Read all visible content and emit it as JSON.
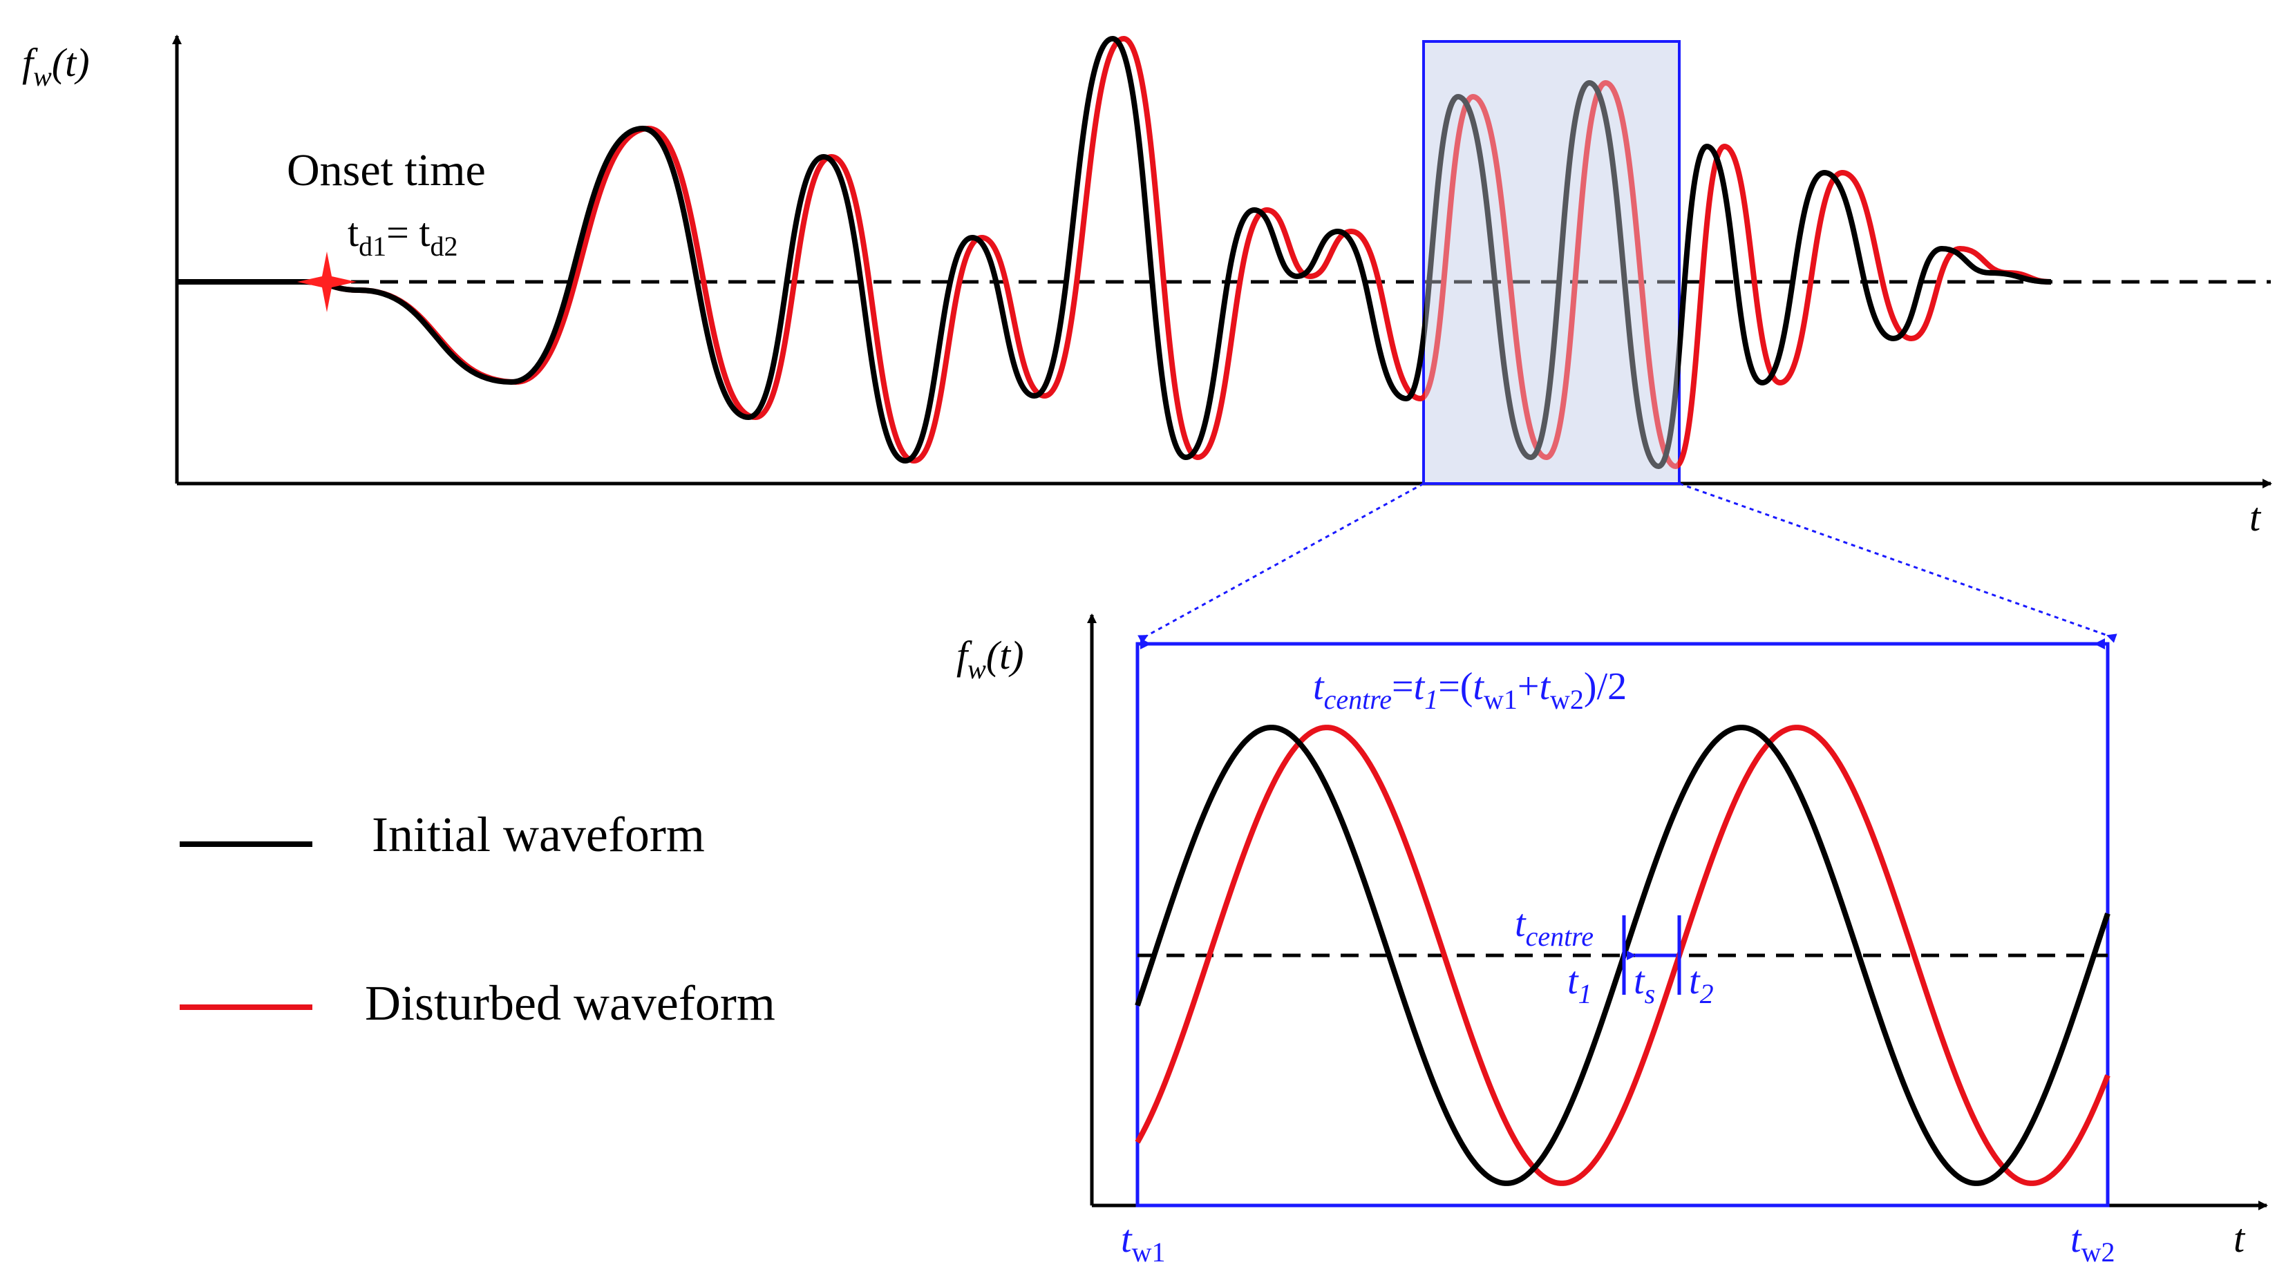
{
  "colors": {
    "initial": "#000000",
    "disturbed": "#e8121b",
    "accent": "#1a1aff",
    "window_fill": "#e3e7f4"
  },
  "top_panel": {
    "y_label": "f",
    "y_label_sub": "w",
    "y_label_tail": "(t)",
    "x_label": "t",
    "onset_title": "Onset time",
    "onset_eq": {
      "t_a": "t",
      "sub_a": "d1",
      "eq": "= ",
      "t_b": "t",
      "sub_b": "d2"
    }
  },
  "bottom_panel": {
    "y_label": "f",
    "y_label_sub": "w",
    "y_label_tail": "(t)",
    "x_label": "t",
    "centre_formula": {
      "t": "t",
      "sub_centre": "centre",
      "eq1": "=",
      "t1": "t",
      "sub_1": "1",
      "eq2": "=(",
      "tw1": "t",
      "sub_w1": "w1",
      "plus": "+",
      "tw2": "t",
      "sub_w2": "w2",
      "tail": ")/2"
    },
    "marker_labels": {
      "t_centre": "t",
      "t_centre_sub": "centre",
      "t1": "t",
      "t1_sub": "1",
      "ts": "t",
      "ts_sub": "s",
      "t2": "t",
      "t2_sub": "2"
    },
    "tw1_label": {
      "t": "t",
      "sub": "w1"
    },
    "tw2_label": {
      "t": "t",
      "sub": "w2"
    }
  },
  "legend": {
    "items": [
      {
        "label": "Initial waveform",
        "color": "#000000"
      },
      {
        "label": "Disturbed waveform",
        "color": "#e8121b"
      }
    ]
  }
}
